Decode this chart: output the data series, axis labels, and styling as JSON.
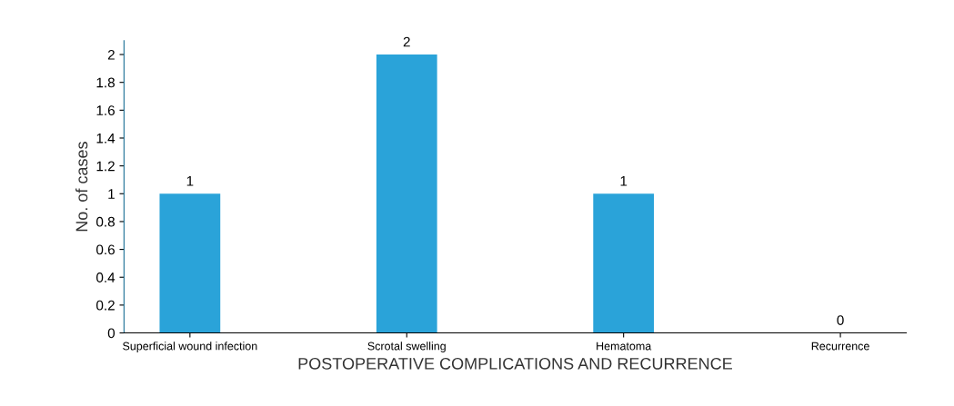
{
  "chart_data": {
    "type": "bar",
    "xlabel": "POSTOPERATIVE COMPLICATIONS AND RECURRENCE",
    "ylabel": "No. of cases",
    "categories": [
      "Superficial wound infection",
      "Scrotal swelling",
      "Hematoma",
      "Recurrence"
    ],
    "values": [
      1,
      2,
      1,
      0
    ],
    "color": "#2aa3d9",
    "data_labels": true,
    "ylim": [
      0,
      2.1
    ],
    "yticks": [
      0,
      0.2,
      0.4,
      0.6,
      0.8,
      1,
      1.2,
      1.4,
      1.6,
      1.8,
      2
    ],
    "grid": false,
    "legend": false
  }
}
